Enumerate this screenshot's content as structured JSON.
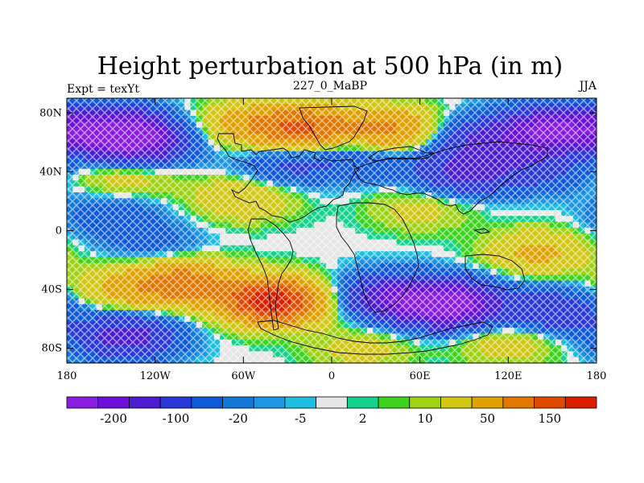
{
  "chart_data": {
    "type": "heatmap",
    "title": "Height perturbation at 500 hPa (in m)",
    "left_string": "Expt = texYt",
    "center_string": "227_0_MaBP",
    "right_string": "JJA",
    "x_ticks": [
      "180",
      "120W",
      "60W",
      "0",
      "60E",
      "120E",
      "180"
    ],
    "y_ticks": [
      "80N",
      "40N",
      "0",
      "40S",
      "80S"
    ],
    "x_range": [
      -180,
      180
    ],
    "y_range": [
      -90,
      90
    ],
    "colorbar": {
      "colors": [
        "#8a1ee0",
        "#6a10d8",
        "#4b1cd0",
        "#2a38d8",
        "#0f5ad8",
        "#1478d8",
        "#1e96e0",
        "#1ebee0",
        "#e6e6e6",
        "#14d28c",
        "#3cd21e",
        "#a0d214",
        "#d2c814",
        "#e0a000",
        "#e07800",
        "#e04a00",
        "#dc1e00"
      ],
      "labels": [
        {
          "text": "-200",
          "after": 1
        },
        {
          "text": "-100",
          "after": 3
        },
        {
          "text": "-20",
          "after": 5
        },
        {
          "text": "-5",
          "after": 7
        },
        {
          "text": "2",
          "after": 9
        },
        {
          "text": "10",
          "after": 11
        },
        {
          "text": "50",
          "after": 13
        },
        {
          "text": "150",
          "after": 15
        }
      ]
    },
    "field_features": [
      {
        "lon": -150,
        "lat": 68,
        "value": -210
      },
      {
        "lon": -130,
        "lat": 60,
        "value": -150
      },
      {
        "lon": 150,
        "lat": 68,
        "value": -210
      },
      {
        "lon": 100,
        "lat": 62,
        "value": -90
      },
      {
        "lon": -20,
        "lat": 70,
        "value": 150
      },
      {
        "lon": 40,
        "lat": 68,
        "value": 110
      },
      {
        "lon": -60,
        "lat": 72,
        "value": 60
      },
      {
        "lon": -30,
        "lat": 45,
        "value": -60
      },
      {
        "lon": 20,
        "lat": 50,
        "value": -50
      },
      {
        "lon": 90,
        "lat": 40,
        "value": -110
      },
      {
        "lon": 140,
        "lat": 42,
        "value": -60
      },
      {
        "lon": -140,
        "lat": 38,
        "value": 40
      },
      {
        "lon": -60,
        "lat": 22,
        "value": 50
      },
      {
        "lon": 60,
        "lat": 15,
        "value": 30
      },
      {
        "lon": -150,
        "lat": 10,
        "value": -40
      },
      {
        "lon": -120,
        "lat": -10,
        "value": -30
      },
      {
        "lon": -40,
        "lat": -48,
        "value": 230
      },
      {
        "lon": -100,
        "lat": -35,
        "value": 120
      },
      {
        "lon": -140,
        "lat": -40,
        "value": 60
      },
      {
        "lon": -140,
        "lat": -72,
        "value": -130
      },
      {
        "lon": 80,
        "lat": -50,
        "value": -240
      },
      {
        "lon": 40,
        "lat": -45,
        "value": -140
      },
      {
        "lon": 150,
        "lat": -55,
        "value": -90
      },
      {
        "lon": 140,
        "lat": -15,
        "value": 60
      },
      {
        "lon": 120,
        "lat": -75,
        "value": 40
      },
      {
        "lon": 20,
        "lat": -80,
        "value": 30
      }
    ]
  }
}
